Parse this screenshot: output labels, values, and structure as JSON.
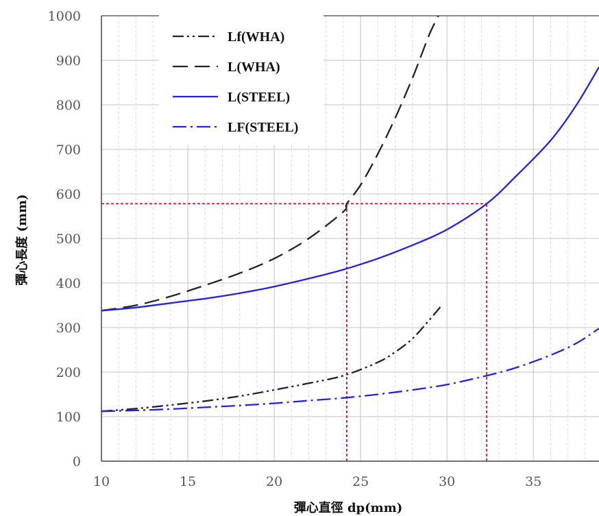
{
  "chart_data": {
    "type": "line",
    "xlabel": "彈心直徑 dp(mm)",
    "ylabel": "彈心長度 (mm)",
    "xlim": [
      10,
      38.8
    ],
    "ylim": [
      0,
      1000
    ],
    "x_ticks": [
      "10",
      "15",
      "20",
      "25",
      "30",
      "35"
    ],
    "y_ticks": [
      "0",
      "100",
      "200",
      "300",
      "400",
      "500",
      "600",
      "700",
      "800",
      "900",
      "1000"
    ],
    "grid": true,
    "legend_position": "top-left",
    "series": [
      {
        "name": "Lf(WHA)",
        "color": "#222222",
        "style": "dash-dot-dot",
        "x": [
          10,
          12,
          14,
          16,
          18,
          20,
          22,
          24,
          26,
          27,
          28,
          29,
          29.7
        ],
        "y": [
          112,
          118,
          126,
          135,
          146,
          160,
          175,
          192,
          222,
          245,
          275,
          318,
          350
        ]
      },
      {
        "name": "L(WHA)",
        "color": "#222222",
        "style": "dash",
        "x": [
          10,
          12,
          14,
          16,
          18,
          20,
          22,
          24,
          24.2,
          25,
          26,
          27,
          28,
          28.5,
          29,
          29.5
        ],
        "y": [
          338,
          350,
          370,
          395,
          422,
          455,
          500,
          560,
          578,
          620,
          690,
          770,
          860,
          910,
          960,
          1000
        ]
      },
      {
        "name": "L(STEEL)",
        "color": "#2222dd",
        "style": "solid",
        "x": [
          10,
          12,
          14,
          16,
          18,
          20,
          22,
          24,
          26,
          28,
          30,
          32.3,
          34,
          36,
          37.5,
          38.8
        ],
        "y": [
          338,
          345,
          355,
          365,
          377,
          392,
          410,
          430,
          455,
          485,
          520,
          578,
          640,
          720,
          800,
          885
        ]
      },
      {
        "name": "LF(STEEL)",
        "color": "#2222dd",
        "style": "dash-dot",
        "x": [
          10,
          12,
          14,
          16,
          18,
          20,
          22,
          24,
          26,
          28,
          30,
          32.3,
          34,
          36,
          37.5,
          38.8
        ],
        "y": [
          112,
          114,
          117,
          121,
          125,
          130,
          136,
          142,
          150,
          160,
          172,
          192,
          210,
          238,
          265,
          298
        ]
      }
    ],
    "reference_lines": [
      {
        "color": "#e0204f",
        "points": [
          [
            10,
            578
          ],
          [
            32.3,
            578
          ]
        ]
      },
      {
        "color": "#e0204f",
        "points": [
          [
            24.2,
            0
          ],
          [
            24.2,
            578
          ]
        ]
      },
      {
        "color": "#e0204f",
        "points": [
          [
            32.3,
            0
          ],
          [
            32.3,
            578
          ]
        ]
      }
    ]
  }
}
